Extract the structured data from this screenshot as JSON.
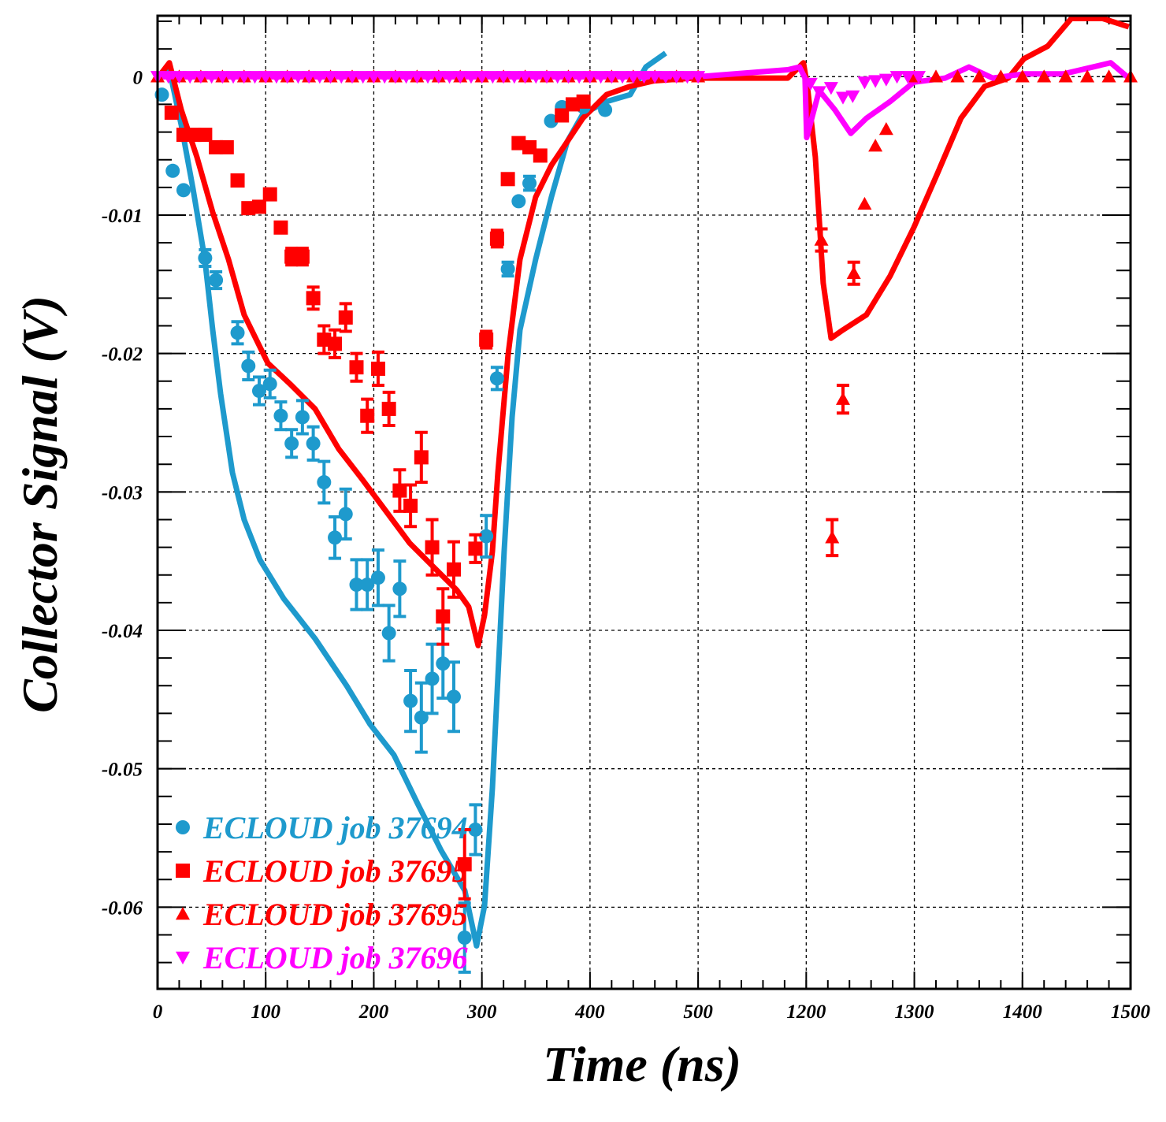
{
  "chart_data": {
    "type": "scatter",
    "title": "",
    "xlabel": "Time (ns)",
    "ylabel": "Collector Signal (V)",
    "x_axis_broken": true,
    "x_segments": [
      [
        0,
        500
      ],
      [
        1100,
        1500
      ]
    ],
    "xticks": [
      0,
      100,
      200,
      300,
      400,
      500,
      1200,
      1300,
      1400,
      1500
    ],
    "xtick_labels": [
      "0",
      "100",
      "200",
      "300",
      "400",
      "500",
      "1200",
      "1300",
      "1400",
      "1500"
    ],
    "ylim": [
      -0.0659,
      0.0044
    ],
    "yticks": [
      0,
      -0.01,
      -0.02,
      -0.03,
      -0.04,
      -0.05,
      -0.06
    ],
    "ytick_labels": [
      "0",
      "-0.01",
      "-0.02",
      "-0.03",
      "-0.04",
      "-0.05",
      "-0.06"
    ],
    "grid": true,
    "legend_position": "bottom-left",
    "series": [
      {
        "name": "ECLOUD job 37694",
        "color": "#1e9acd",
        "marker": "circle",
        "points": {
          "t": [
            4,
            14,
            24,
            44,
            54,
            74,
            84,
            94,
            104,
            114,
            124,
            134,
            144,
            154,
            164,
            174,
            184,
            194,
            204,
            214,
            224,
            234,
            244,
            254,
            264,
            274,
            284,
            294,
            304,
            314,
            324,
            334,
            344,
            364,
            374,
            394,
            414
          ],
          "v": [
            -0.0013,
            -0.0068,
            -0.0082,
            -0.0131,
            -0.0147,
            -0.0185,
            -0.0209,
            -0.0227,
            -0.0222,
            -0.0245,
            -0.0265,
            -0.0246,
            -0.0265,
            -0.0293,
            -0.0333,
            -0.0316,
            -0.0367,
            -0.0367,
            -0.0362,
            -0.0402,
            -0.037,
            -0.0451,
            -0.0463,
            -0.0435,
            -0.0424,
            -0.0448,
            -0.0622,
            -0.0544,
            -0.0332,
            -0.0218,
            -0.0139,
            -0.009,
            -0.0077,
            -0.0032,
            -0.0022,
            -0.0022,
            -0.0024
          ],
          "err": [
            0,
            0,
            0,
            0.0006,
            0.0006,
            0.0008,
            0.001,
            0.001,
            0.001,
            0.001,
            0.001,
            0.0012,
            0.0012,
            0.0015,
            0.0015,
            0.0018,
            0.0018,
            0.0018,
            0.002,
            0.002,
            0.002,
            0.0022,
            0.0025,
            0.0025,
            0.0025,
            0.0025,
            0.0025,
            0.0018,
            0.0015,
            0.0008,
            0.0005,
            0,
            0.0005,
            0,
            0,
            0,
            0
          ]
        },
        "curve": {
          "t": [
            0,
            10.9,
            21.9,
            32.8,
            43.7,
            51,
            58.3,
            69.2,
            80.1,
            94.7,
            116.6,
            145.7,
            174.9,
            196.7,
            218.6,
            240.4,
            262.3,
            284.2,
            295.1,
            302.4,
            309.7,
            320.6,
            327.9,
            335.2,
            349.7,
            364.3,
            378.9,
            393.4,
            415.3,
            437.2,
            451.7,
            470
          ],
          "v": [
            -0.0001,
            0.0005,
            -0.0035,
            -0.0081,
            -0.0132,
            -0.0183,
            -0.0229,
            -0.0286,
            -0.032,
            -0.0349,
            -0.0377,
            -0.0406,
            -0.044,
            -0.0468,
            -0.049,
            -0.0525,
            -0.0559,
            -0.0588,
            -0.0628,
            -0.0599,
            -0.0514,
            -0.0343,
            -0.0246,
            -0.0183,
            -0.0132,
            -0.0087,
            -0.0047,
            -0.0027,
            -0.0018,
            -0.0013,
            0.0007,
            0.0017
          ]
        }
      },
      {
        "name": "ECLOUD job 37695",
        "color": "#ff0000",
        "marker": "square",
        "points": {
          "t": [
            13,
            24,
            34,
            44,
            54,
            64,
            74,
            84,
            94,
            104,
            114,
            124,
            134,
            144,
            154,
            164,
            174,
            184,
            194,
            204,
            214,
            224,
            234,
            244,
            254,
            264,
            274,
            284,
            294,
            304,
            314,
            324,
            334,
            344,
            354,
            374,
            384,
            394
          ],
          "v": [
            -0.0026,
            -0.0042,
            -0.0042,
            -0.0042,
            -0.0051,
            -0.0051,
            -0.0075,
            -0.0095,
            -0.0094,
            -0.0085,
            -0.0109,
            -0.013,
            -0.013,
            -0.016,
            -0.019,
            -0.0193,
            -0.0174,
            -0.021,
            -0.0245,
            -0.0211,
            -0.024,
            -0.0299,
            -0.031,
            -0.0275,
            -0.034,
            -0.039,
            -0.0356,
            -0.0569,
            -0.0341,
            -0.019,
            -0.0117,
            -0.0074,
            -0.0048,
            -0.0051,
            -0.0057,
            -0.0028,
            -0.002,
            -0.0018
          ],
          "err": [
            0,
            0,
            0,
            0,
            0,
            0,
            0,
            0,
            0,
            0,
            0,
            0.0006,
            0.0006,
            0.0008,
            0.001,
            0.001,
            0.001,
            0.001,
            0.0012,
            0.0012,
            0.0012,
            0.0015,
            0.0015,
            0.0018,
            0.002,
            0.002,
            0.002,
            0.0025,
            0.001,
            0.0006,
            0.0006,
            0,
            0,
            0,
            0,
            0,
            0,
            0
          ]
        },
        "curve": {
          "t": [
            0,
            10.9,
            21.9,
            36.4,
            51,
            65.6,
            80.1,
            102,
            123.9,
            145.7,
            167.6,
            189.4,
            211.3,
            233.2,
            255,
            276.9,
            287.8,
            296.5,
            302.4,
            309.7,
            314.8,
            324.2,
            335.2,
            349.7,
            364.3,
            378.9,
            393.4,
            415.3,
            437.2,
            459,
            495.4
          ],
          "v": [
            -0.0001,
            0.001,
            -0.0024,
            -0.0058,
            -0.0098,
            -0.0132,
            -0.0172,
            -0.0207,
            -0.0223,
            -0.024,
            -0.0269,
            -0.0291,
            -0.0314,
            -0.0337,
            -0.0354,
            -0.0371,
            -0.0383,
            -0.0411,
            -0.0389,
            -0.0343,
            -0.0286,
            -0.0201,
            -0.0132,
            -0.0087,
            -0.0064,
            -0.0047,
            -0.003,
            -0.0013,
            -0.0007,
            -0.0003,
            -0.0001
          ]
        }
      },
      {
        "name": "ECLOUD job 37695",
        "color": "#ff0000",
        "marker": "triangle-up",
        "points": {
          "t": [
            0,
            20,
            40,
            60,
            80,
            100,
            120,
            140,
            160,
            180,
            200,
            220,
            240,
            260,
            280,
            300,
            320,
            340,
            360,
            380,
            400,
            420,
            440,
            460,
            480,
            500,
            1214,
            1224,
            1234,
            1244,
            1254,
            1264,
            1274,
            1300,
            1320,
            1340,
            1360,
            1380,
            1400,
            1420,
            1440,
            1460,
            1480,
            1500
          ],
          "v": [
            0,
            0,
            0,
            0,
            0,
            0,
            0,
            0,
            0,
            0,
            0,
            0,
            0,
            0,
            0,
            0,
            0,
            0,
            0,
            0,
            0,
            0,
            0,
            0,
            0,
            0,
            -0.0118,
            -0.0333,
            -0.0233,
            -0.0142,
            -0.0092,
            -0.005,
            -0.0038,
            0,
            0,
            0,
            0,
            0,
            0,
            0,
            0,
            0,
            0,
            0
          ],
          "err": [
            0,
            0,
            0,
            0,
            0,
            0,
            0,
            0,
            0,
            0,
            0,
            0,
            0,
            0,
            0,
            0,
            0,
            0,
            0,
            0,
            0,
            0,
            0,
            0,
            0,
            0,
            0.0008,
            0.0013,
            0.001,
            0.0008,
            0,
            0,
            0,
            0,
            0,
            0,
            0,
            0,
            0,
            0,
            0,
            0,
            0,
            0
          ]
        },
        "curve": {
          "t": [
            0,
            500,
            1100,
            1182.9,
            1197.4,
            1201.1,
            1208.4,
            1215.7,
            1223,
            1233.9,
            1255.7,
            1277.6,
            1299.5,
            1321.3,
            1343.2,
            1365,
            1386.9,
            1401.5,
            1423.3,
            1445.2,
            1474.3,
            1498.4
          ],
          "v": [
            0,
            0,
            -0.0001,
            -0.0001,
            0.001,
            -0.0007,
            -0.0058,
            -0.0149,
            -0.0189,
            -0.0183,
            -0.0172,
            -0.0144,
            -0.0109,
            -0.007,
            -0.003,
            -0.0007,
            -0.0001,
            0.0013,
            0.0022,
            0.0042,
            0.0042,
            0.0036
          ]
        }
      },
      {
        "name": "ECLOUD job 37696",
        "color": "#ff00ff",
        "marker": "triangle-down",
        "points": {
          "t": [
            0,
            10,
            20,
            30,
            40,
            50,
            60,
            70,
            80,
            90,
            100,
            110,
            120,
            130,
            140,
            150,
            160,
            170,
            180,
            190,
            200,
            210,
            220,
            230,
            240,
            250,
            260,
            270,
            280,
            290,
            300,
            310,
            320,
            330,
            340,
            350,
            360,
            370,
            380,
            390,
            400,
            410,
            420,
            430,
            440,
            450,
            460,
            470,
            480,
            490,
            500,
            1204,
            1212,
            1223,
            1234,
            1243,
            1254,
            1264,
            1274,
            1284,
            1294,
            1304
          ],
          "v": [
            0,
            0,
            0,
            0,
            0,
            0,
            0,
            0,
            0,
            0,
            0,
            0,
            0,
            0,
            0,
            0,
            0,
            0,
            0,
            0,
            0,
            0,
            0,
            0,
            0,
            0,
            0,
            0,
            0,
            0,
            0,
            0,
            0,
            0,
            0,
            0,
            0,
            0,
            0,
            0,
            0,
            0,
            0,
            0,
            0,
            0,
            0,
            0,
            0,
            0,
            0,
            -0.0005,
            -0.0011,
            -0.0008,
            -0.0015,
            -0.0014,
            -0.0004,
            -0.0003,
            -0.0002,
            0,
            0,
            0
          ],
          "err": []
        },
        "curve": {
          "t": [
            0,
            500,
            1100,
            1182.9,
            1193.8,
            1198.9,
            1200.4,
            1212,
            1226.6,
            1241.2,
            1255.7,
            1277.6,
            1299.5,
            1328.6,
            1350.5,
            1372.4,
            1401.5,
            1437.9,
            1481.6,
            1498.4
          ],
          "v": [
            0,
            0,
            0,
            0.0005,
            0.0007,
            -0.0001,
            -0.0044,
            -0.001,
            -0.0024,
            -0.0041,
            -0.003,
            -0.0018,
            -0.0004,
            -0.0001,
            0.0007,
            -0.0001,
            0.0002,
            0.0002,
            0.001,
            -0.0001
          ]
        }
      }
    ]
  }
}
